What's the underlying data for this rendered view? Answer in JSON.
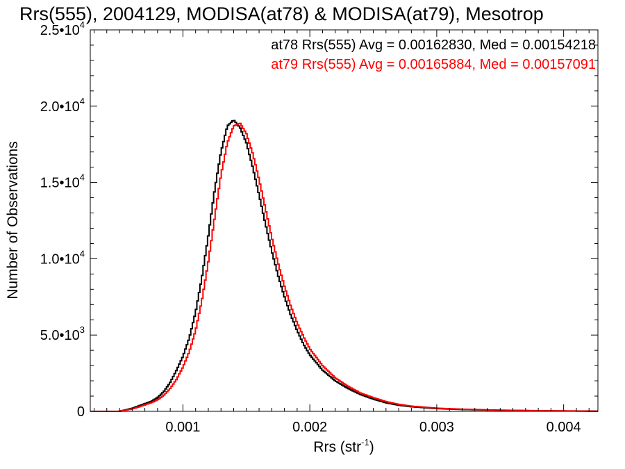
{
  "chart_data": {
    "type": "line",
    "style": "step-histogram",
    "title": "Rrs(555), 2004129, MODISA(at78) & MODISA(at79), Mesotrop",
    "xlabel": "Rrs (str",
    "xlabel_sup": "-1",
    "xlabel_end": ")",
    "ylabel": "Number of Observations",
    "xlim": [
      0.00027,
      0.00427
    ],
    "ylim": [
      0,
      25000
    ],
    "x_ticks": [
      {
        "value": 0.001,
        "label": "0.001"
      },
      {
        "value": 0.002,
        "label": "0.002"
      },
      {
        "value": 0.003,
        "label": "0.003"
      },
      {
        "value": 0.004,
        "label": "0.004"
      }
    ],
    "y_ticks": [
      {
        "value": 0,
        "mant": "0",
        "exp": ""
      },
      {
        "value": 5000,
        "mant": "5.0•10",
        "exp": "3"
      },
      {
        "value": 10000,
        "mant": "1.0•10",
        "exp": "4"
      },
      {
        "value": 15000,
        "mant": "1.5•10",
        "exp": "4"
      },
      {
        "value": 20000,
        "mant": "2.0•10",
        "exp": "4"
      },
      {
        "value": 25000,
        "mant": "2.5•10",
        "exp": "4"
      }
    ],
    "legend_position": "top-right",
    "grid": false,
    "annotations": [
      {
        "text": "at78 Rrs(555) Avg = 0.00162830, Med = 0.00154218",
        "color": "#000000"
      },
      {
        "text": "at79 Rrs(555) Avg = 0.00165884, Med = 0.00157091",
        "color": "#ff0000"
      }
    ],
    "series": [
      {
        "color": "#000000",
        "x": [
          0.0003,
          0.0004,
          0.0005,
          0.00055,
          0.0006,
          0.00065,
          0.0007,
          0.00075,
          0.0008,
          0.00085,
          0.0009,
          0.00095,
          0.001,
          0.00105,
          0.0011,
          0.00115,
          0.0012,
          0.00125,
          0.0013,
          0.00135,
          0.0014,
          0.00145,
          0.0015,
          0.00155,
          0.0016,
          0.00165,
          0.0017,
          0.00175,
          0.0018,
          0.00185,
          0.0019,
          0.00195,
          0.002,
          0.0021,
          0.0022,
          0.0023,
          0.0024,
          0.0025,
          0.0026,
          0.0027,
          0.0028,
          0.003,
          0.0032,
          0.0035,
          0.0038,
          0.0041,
          0.00427
        ],
        "y": [
          0,
          0,
          0,
          100,
          200,
          350,
          500,
          650,
          900,
          1300,
          1900,
          2700,
          3600,
          4800,
          6500,
          8800,
          11500,
          14500,
          17000,
          18700,
          19100,
          18600,
          17600,
          16000,
          14200,
          12300,
          10500,
          8900,
          7500,
          6300,
          5300,
          4400,
          3700,
          2700,
          2000,
          1500,
          1100,
          800,
          560,
          400,
          300,
          180,
          120,
          70,
          40,
          20,
          10
        ]
      },
      {
        "color": "#ff0000",
        "x": [
          0.0003,
          0.0004,
          0.0005,
          0.00055,
          0.0006,
          0.00065,
          0.0007,
          0.00075,
          0.0008,
          0.00085,
          0.0009,
          0.00095,
          0.001,
          0.00105,
          0.0011,
          0.00115,
          0.0012,
          0.00125,
          0.0013,
          0.00135,
          0.0014,
          0.00145,
          0.0015,
          0.00155,
          0.0016,
          0.00165,
          0.0017,
          0.00175,
          0.0018,
          0.00185,
          0.0019,
          0.00195,
          0.002,
          0.0021,
          0.0022,
          0.0023,
          0.0024,
          0.0025,
          0.0026,
          0.0027,
          0.0028,
          0.003,
          0.0032,
          0.0035,
          0.0038,
          0.0041,
          0.00427
        ],
        "y": [
          0,
          0,
          0,
          80,
          160,
          280,
          420,
          560,
          750,
          1050,
          1500,
          2100,
          2900,
          3900,
          5300,
          7300,
          9800,
          12700,
          15500,
          17600,
          18700,
          18900,
          18200,
          16900,
          15200,
          13300,
          11400,
          9700,
          8200,
          6900,
          5800,
          4900,
          4100,
          3000,
          2200,
          1650,
          1200,
          900,
          640,
          460,
          340,
          210,
          140,
          80,
          45,
          25,
          12
        ]
      }
    ]
  }
}
